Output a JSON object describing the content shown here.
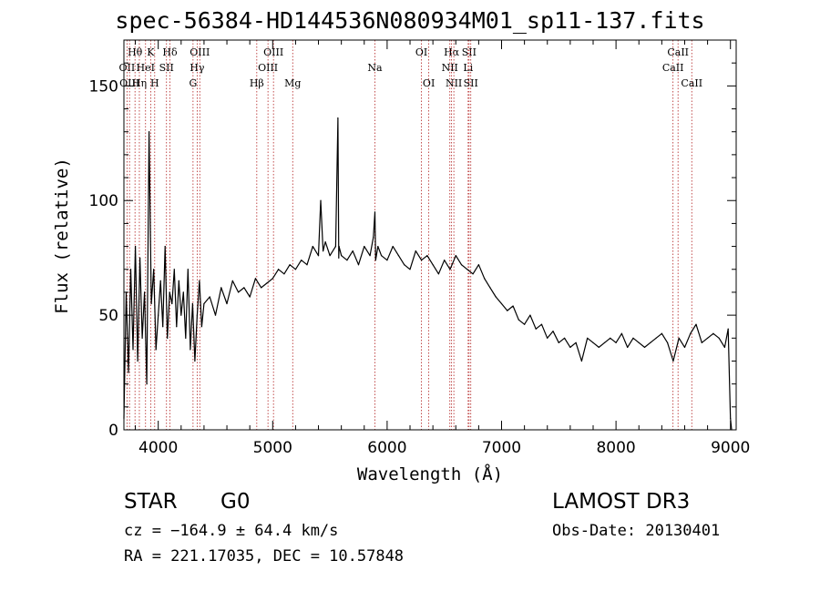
{
  "chart_data": {
    "type": "line",
    "title": "spec-56384-HD144536N080934M01_sp11-137.fits",
    "xlabel": "Wavelength (Å)",
    "ylabel": "Flux (relative)",
    "xlim": [
      3700,
      9050
    ],
    "ylim": [
      0,
      170
    ],
    "xticks": [
      4000,
      5000,
      6000,
      7000,
      8000,
      9000
    ],
    "yticks": [
      0,
      50,
      100,
      150
    ],
    "grid": false,
    "series": [
      {
        "name": "spectrum",
        "x": [
          3700,
          3720,
          3740,
          3760,
          3780,
          3800,
          3820,
          3840,
          3860,
          3880,
          3900,
          3920,
          3940,
          3960,
          3980,
          4000,
          4020,
          4040,
          4060,
          4080,
          4100,
          4120,
          4140,
          4160,
          4180,
          4200,
          4220,
          4240,
          4260,
          4280,
          4300,
          4320,
          4340,
          4360,
          4380,
          4400,
          4450,
          4500,
          4550,
          4600,
          4650,
          4700,
          4750,
          4800,
          4850,
          4900,
          4950,
          5000,
          5050,
          5100,
          5150,
          5200,
          5250,
          5300,
          5350,
          5400,
          5420,
          5440,
          5460,
          5500,
          5550,
          5570,
          5577,
          5580,
          5600,
          5650,
          5700,
          5750,
          5800,
          5850,
          5880,
          5893,
          5900,
          5920,
          5950,
          6000,
          6050,
          6100,
          6150,
          6200,
          6250,
          6300,
          6350,
          6400,
          6450,
          6500,
          6550,
          6600,
          6650,
          6700,
          6750,
          6800,
          6850,
          6900,
          6950,
          7000,
          7050,
          7100,
          7150,
          7200,
          7250,
          7300,
          7350,
          7400,
          7450,
          7500,
          7550,
          7600,
          7650,
          7700,
          7750,
          7800,
          7850,
          7900,
          7950,
          8000,
          8050,
          8100,
          8150,
          8200,
          8250,
          8300,
          8350,
          8400,
          8450,
          8500,
          8550,
          8600,
          8650,
          8700,
          8750,
          8800,
          8850,
          8900,
          8950,
          8980,
          9000,
          9010
        ],
        "values": [
          5,
          60,
          25,
          70,
          35,
          80,
          30,
          75,
          40,
          60,
          20,
          130,
          55,
          70,
          35,
          50,
          65,
          45,
          80,
          40,
          60,
          55,
          70,
          45,
          65,
          50,
          60,
          40,
          70,
          35,
          55,
          30,
          50,
          65,
          45,
          55,
          58,
          50,
          62,
          55,
          65,
          60,
          62,
          58,
          66,
          62,
          64,
          66,
          70,
          68,
          72,
          70,
          74,
          72,
          80,
          76,
          100,
          78,
          82,
          76,
          80,
          136,
          75,
          80,
          76,
          74,
          78,
          72,
          80,
          76,
          84,
          95,
          74,
          80,
          76,
          74,
          80,
          76,
          72,
          70,
          78,
          74,
          76,
          72,
          68,
          74,
          70,
          76,
          72,
          70,
          68,
          72,
          66,
          62,
          58,
          55,
          52,
          54,
          48,
          46,
          50,
          44,
          46,
          40,
          43,
          38,
          40,
          36,
          38,
          30,
          40,
          38,
          36,
          38,
          40,
          38,
          42,
          36,
          40,
          38,
          36,
          38,
          40,
          42,
          38,
          30,
          40,
          36,
          42,
          46,
          38,
          40,
          42,
          40,
          36,
          44,
          5,
          0
        ]
      }
    ],
    "line_markers": [
      {
        "label": "Hθ",
        "x": 3797,
        "row": 1
      },
      {
        "label": "OII",
        "x": 3727,
        "row": 2
      },
      {
        "label": "OIII",
        "x": 3749,
        "row": 3
      },
      {
        "label": "K",
        "x": 3934,
        "row": 1
      },
      {
        "label": "HeI",
        "x": 3889,
        "row": 2
      },
      {
        "label": "Hη",
        "x": 3835,
        "row": 3
      },
      {
        "label": "Hδ",
        "x": 4102,
        "row": 1
      },
      {
        "label": "SII",
        "x": 4072,
        "row": 2
      },
      {
        "label": "H",
        "x": 3969,
        "row": 3
      },
      {
        "label": "OIII",
        "x": 4363,
        "row": 1
      },
      {
        "label": "Hγ",
        "x": 4340,
        "row": 2
      },
      {
        "label": "G",
        "x": 4304,
        "row": 3
      },
      {
        "label": "OIII",
        "x": 5007,
        "row": 1
      },
      {
        "label": "OIII",
        "x": 4959,
        "row": 2
      },
      {
        "label": "Hβ",
        "x": 4861,
        "row": 3
      },
      {
        "label": "Mg",
        "x": 5175,
        "row": 3
      },
      {
        "label": "Na",
        "x": 5893,
        "row": 2
      },
      {
        "label": "OI",
        "x": 6300,
        "row": 1
      },
      {
        "label": "OI",
        "x": 6364,
        "row": 3
      },
      {
        "label": "Hα",
        "x": 6563,
        "row": 1
      },
      {
        "label": "SII",
        "x": 6716,
        "row": 1
      },
      {
        "label": "NII",
        "x": 6548,
        "row": 2
      },
      {
        "label": "Li",
        "x": 6708,
        "row": 2
      },
      {
        "label": "NII",
        "x": 6583,
        "row": 3
      },
      {
        "label": "SII",
        "x": 6731,
        "row": 3
      },
      {
        "label": "CaII",
        "x": 8542,
        "row": 1
      },
      {
        "label": "CaII",
        "x": 8498,
        "row": 2
      },
      {
        "label": "CaII",
        "x": 8662,
        "row": 3
      }
    ]
  },
  "info": {
    "class": "STAR",
    "subclass": "G0",
    "survey": "LAMOST DR3",
    "cz": "cz = −164.9 ± 64.4 km/s",
    "obs_date": "Obs-Date: 20130401",
    "radec": "RA = 221.17035, DEC =  10.57848"
  }
}
